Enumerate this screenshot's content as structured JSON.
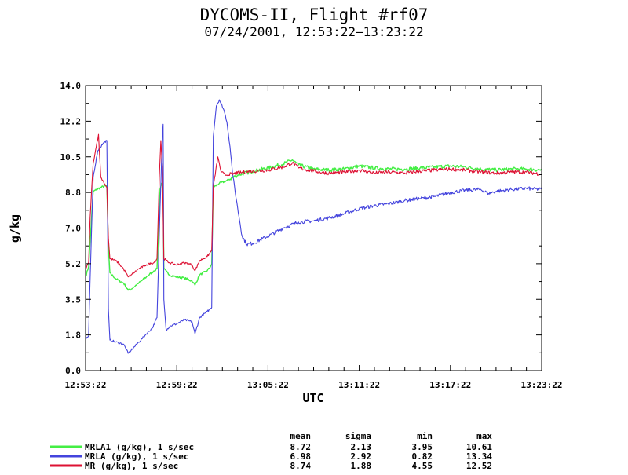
{
  "header": {
    "title": "DYCOMS-II, Flight #rf07",
    "subtitle": "07/24/2001, 12:53:22–13:23:22"
  },
  "chart_data": {
    "type": "line",
    "xlabel": "UTC",
    "ylabel": "g/kg",
    "xlim_minutes": [
      0,
      30
    ],
    "ylim": [
      0.0,
      14.0
    ],
    "x_ticks": [
      {
        "minute": 0,
        "label": "12:53:22"
      },
      {
        "minute": 6,
        "label": "12:59:22"
      },
      {
        "minute": 12,
        "label": "13:05:22"
      },
      {
        "minute": 18,
        "label": "13:11:22"
      },
      {
        "minute": 24,
        "label": "13:17:22"
      },
      {
        "minute": 30,
        "label": "13:23:22"
      }
    ],
    "y_ticks": [
      {
        "value": 0.0,
        "label": "0.0"
      },
      {
        "value": 1.75,
        "label": "1.8"
      },
      {
        "value": 3.5,
        "label": "3.5"
      },
      {
        "value": 5.25,
        "label": "5.2"
      },
      {
        "value": 7.0,
        "label": "7.0"
      },
      {
        "value": 8.75,
        "label": "8.8"
      },
      {
        "value": 10.5,
        "label": "10.5"
      },
      {
        "value": 12.25,
        "label": "12.2"
      },
      {
        "value": 14.0,
        "label": "14.0"
      }
    ],
    "grid": false,
    "series": [
      {
        "name": "MRLA1 (g/kg), 1 s/sec",
        "color": "#44ee44",
        "points": [
          [
            0,
            4.6
          ],
          [
            0.2,
            5.1
          ],
          [
            0.5,
            8.8
          ],
          [
            1.0,
            9.0
          ],
          [
            1.4,
            9.1
          ],
          [
            1.5,
            6.0
          ],
          [
            1.6,
            4.8
          ],
          [
            2.0,
            4.5
          ],
          [
            2.5,
            4.3
          ],
          [
            2.8,
            3.95
          ],
          [
            3.0,
            4.0
          ],
          [
            3.5,
            4.3
          ],
          [
            4.0,
            4.6
          ],
          [
            4.5,
            4.9
          ],
          [
            4.7,
            5.0
          ],
          [
            4.9,
            8.9
          ],
          [
            5.0,
            9.2
          ],
          [
            5.1,
            8.9
          ],
          [
            5.15,
            5.0
          ],
          [
            5.5,
            4.7
          ],
          [
            6.0,
            4.6
          ],
          [
            6.5,
            4.55
          ],
          [
            7.0,
            4.4
          ],
          [
            7.2,
            4.2
          ],
          [
            7.5,
            4.7
          ],
          [
            8.0,
            4.9
          ],
          [
            8.3,
            5.2
          ],
          [
            8.4,
            9.0
          ],
          [
            8.8,
            9.2
          ],
          [
            9.2,
            9.3
          ],
          [
            10.0,
            9.6
          ],
          [
            11.0,
            9.8
          ],
          [
            12.0,
            9.95
          ],
          [
            13.0,
            10.15
          ],
          [
            13.6,
            10.35
          ],
          [
            14.0,
            10.1
          ],
          [
            15.0,
            9.9
          ],
          [
            16.0,
            9.85
          ],
          [
            17.0,
            9.9
          ],
          [
            18.0,
            10.05
          ],
          [
            19.0,
            9.95
          ],
          [
            20.0,
            9.9
          ],
          [
            21.0,
            9.9
          ],
          [
            22.0,
            9.95
          ],
          [
            23.0,
            10.0
          ],
          [
            24.0,
            10.05
          ],
          [
            25.0,
            10.0
          ],
          [
            26.0,
            9.9
          ],
          [
            27.0,
            9.85
          ],
          [
            28.0,
            9.9
          ],
          [
            29.0,
            9.9
          ],
          [
            30.0,
            9.85
          ]
        ]
      },
      {
        "name": "MRLA (g/kg), 1 s/sec",
        "color": "#4444dd",
        "points": [
          [
            0,
            1.5
          ],
          [
            0.2,
            1.7
          ],
          [
            0.3,
            4.5
          ],
          [
            0.5,
            9.5
          ],
          [
            0.8,
            10.8
          ],
          [
            1.2,
            11.2
          ],
          [
            1.4,
            11.3
          ],
          [
            1.5,
            3.0
          ],
          [
            1.6,
            1.5
          ],
          [
            2.0,
            1.4
          ],
          [
            2.5,
            1.3
          ],
          [
            2.8,
            0.85
          ],
          [
            3.0,
            1.0
          ],
          [
            3.5,
            1.4
          ],
          [
            4.0,
            1.8
          ],
          [
            4.4,
            2.1
          ],
          [
            4.7,
            2.6
          ],
          [
            4.9,
            8.0
          ],
          [
            5.05,
            11.5
          ],
          [
            5.1,
            12.1
          ],
          [
            5.15,
            3.5
          ],
          [
            5.3,
            2.0
          ],
          [
            5.6,
            2.2
          ],
          [
            6.0,
            2.3
          ],
          [
            6.5,
            2.5
          ],
          [
            7.0,
            2.4
          ],
          [
            7.2,
            1.8
          ],
          [
            7.5,
            2.6
          ],
          [
            8.0,
            2.9
          ],
          [
            8.3,
            3.1
          ],
          [
            8.4,
            11.5
          ],
          [
            8.6,
            13.0
          ],
          [
            8.8,
            13.3
          ],
          [
            9.1,
            12.8
          ],
          [
            9.3,
            12.2
          ],
          [
            9.5,
            11.0
          ],
          [
            9.7,
            9.5
          ],
          [
            10.0,
            8.0
          ],
          [
            10.3,
            6.6
          ],
          [
            10.6,
            6.2
          ],
          [
            11.0,
            6.25
          ],
          [
            12.0,
            6.6
          ],
          [
            13.0,
            7.0
          ],
          [
            14.0,
            7.3
          ],
          [
            15.0,
            7.35
          ],
          [
            16.0,
            7.5
          ],
          [
            17.0,
            7.7
          ],
          [
            18.0,
            7.95
          ],
          [
            19.0,
            8.1
          ],
          [
            20.0,
            8.2
          ],
          [
            21.0,
            8.35
          ],
          [
            22.0,
            8.45
          ],
          [
            23.0,
            8.55
          ],
          [
            24.0,
            8.75
          ],
          [
            25.0,
            8.85
          ],
          [
            26.0,
            8.9
          ],
          [
            26.5,
            8.7
          ],
          [
            27.0,
            8.8
          ],
          [
            28.0,
            8.9
          ],
          [
            29.0,
            8.95
          ],
          [
            30.0,
            8.9
          ]
        ]
      },
      {
        "name": "MR (g/kg), 1 s/sec",
        "color": "#dd1133",
        "points": [
          [
            0,
            5.0
          ],
          [
            0.2,
            5.3
          ],
          [
            0.3,
            7.5
          ],
          [
            0.5,
            10.2
          ],
          [
            0.7,
            11.0
          ],
          [
            0.85,
            11.6
          ],
          [
            1.0,
            9.5
          ],
          [
            1.4,
            9.0
          ],
          [
            1.5,
            6.5
          ],
          [
            1.6,
            5.5
          ],
          [
            2.0,
            5.4
          ],
          [
            2.5,
            5.0
          ],
          [
            2.8,
            4.6
          ],
          [
            3.0,
            4.7
          ],
          [
            3.5,
            5.0
          ],
          [
            4.0,
            5.2
          ],
          [
            4.5,
            5.3
          ],
          [
            4.7,
            5.5
          ],
          [
            4.85,
            9.5
          ],
          [
            4.95,
            11.3
          ],
          [
            5.05,
            10.0
          ],
          [
            5.15,
            5.5
          ],
          [
            5.5,
            5.3
          ],
          [
            6.0,
            5.2
          ],
          [
            6.5,
            5.3
          ],
          [
            7.0,
            5.2
          ],
          [
            7.2,
            4.9
          ],
          [
            7.5,
            5.4
          ],
          [
            8.0,
            5.6
          ],
          [
            8.3,
            5.9
          ],
          [
            8.4,
            9.0
          ],
          [
            8.7,
            10.5
          ],
          [
            8.9,
            9.8
          ],
          [
            9.2,
            9.6
          ],
          [
            10.0,
            9.7
          ],
          [
            11.0,
            9.8
          ],
          [
            12.0,
            9.85
          ],
          [
            13.0,
            10.0
          ],
          [
            13.6,
            10.2
          ],
          [
            14.0,
            9.95
          ],
          [
            15.0,
            9.8
          ],
          [
            16.0,
            9.7
          ],
          [
            17.0,
            9.75
          ],
          [
            18.0,
            9.85
          ],
          [
            19.0,
            9.7
          ],
          [
            20.0,
            9.75
          ],
          [
            21.0,
            9.7
          ],
          [
            22.0,
            9.8
          ],
          [
            23.0,
            9.85
          ],
          [
            24.0,
            9.9
          ],
          [
            25.0,
            9.85
          ],
          [
            26.0,
            9.75
          ],
          [
            27.0,
            9.7
          ],
          [
            28.0,
            9.75
          ],
          [
            29.0,
            9.75
          ],
          [
            30.0,
            9.65
          ]
        ]
      }
    ]
  },
  "stats_table": {
    "headers": [
      "mean",
      "sigma",
      "min",
      "max"
    ],
    "rows": [
      {
        "name": "MRLA1 (g/kg), 1 s/sec",
        "values": [
          "8.72",
          "2.13",
          "3.95",
          "10.61"
        ]
      },
      {
        "name": "MRLA (g/kg), 1 s/sec",
        "values": [
          "6.98",
          "2.92",
          "0.82",
          "13.34"
        ]
      },
      {
        "name": "MR (g/kg), 1 s/sec",
        "values": [
          "8.74",
          "1.88",
          "4.55",
          "12.52"
        ]
      }
    ]
  }
}
